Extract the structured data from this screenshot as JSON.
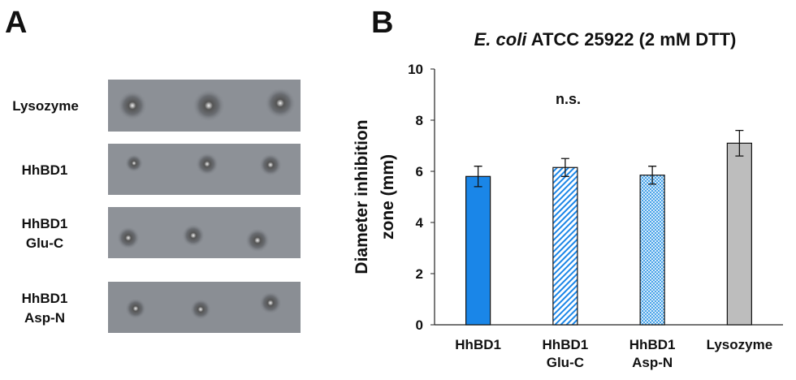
{
  "panels": [
    "A",
    "B"
  ],
  "panel_a": {
    "rows": [
      [
        "Lysozyme"
      ],
      [
        "HhBD1"
      ],
      [
        "HhBD1",
        "Glu-C"
      ],
      [
        "HhBD1",
        "Asp-N"
      ]
    ]
  },
  "chart_data": {
    "type": "bar",
    "title": [
      "E. coli",
      "ATCC 25922 (2 mM DTT)"
    ],
    "ylabel": [
      "Diameter  inhibition",
      "zone (mm)"
    ],
    "categories": [
      [
        "HhBD1"
      ],
      [
        "HhBD1",
        "Glu-C"
      ],
      [
        "HhBD1",
        "Asp-N"
      ],
      [
        "Lysozyme"
      ]
    ],
    "values": [
      5.8,
      6.15,
      5.85,
      7.1
    ],
    "errors": [
      0.4,
      0.35,
      0.35,
      0.5
    ],
    "colors": [
      "#1a86e8",
      "#1a86e8",
      "#4aa3e8",
      "#bdbdbd"
    ],
    "patterns": [
      "solid",
      "diagonal",
      "cross",
      "solid"
    ],
    "annotation": "n.s.",
    "ylim": [
      0,
      10
    ],
    "yticks": [
      0,
      2,
      4,
      6,
      8,
      10
    ]
  }
}
